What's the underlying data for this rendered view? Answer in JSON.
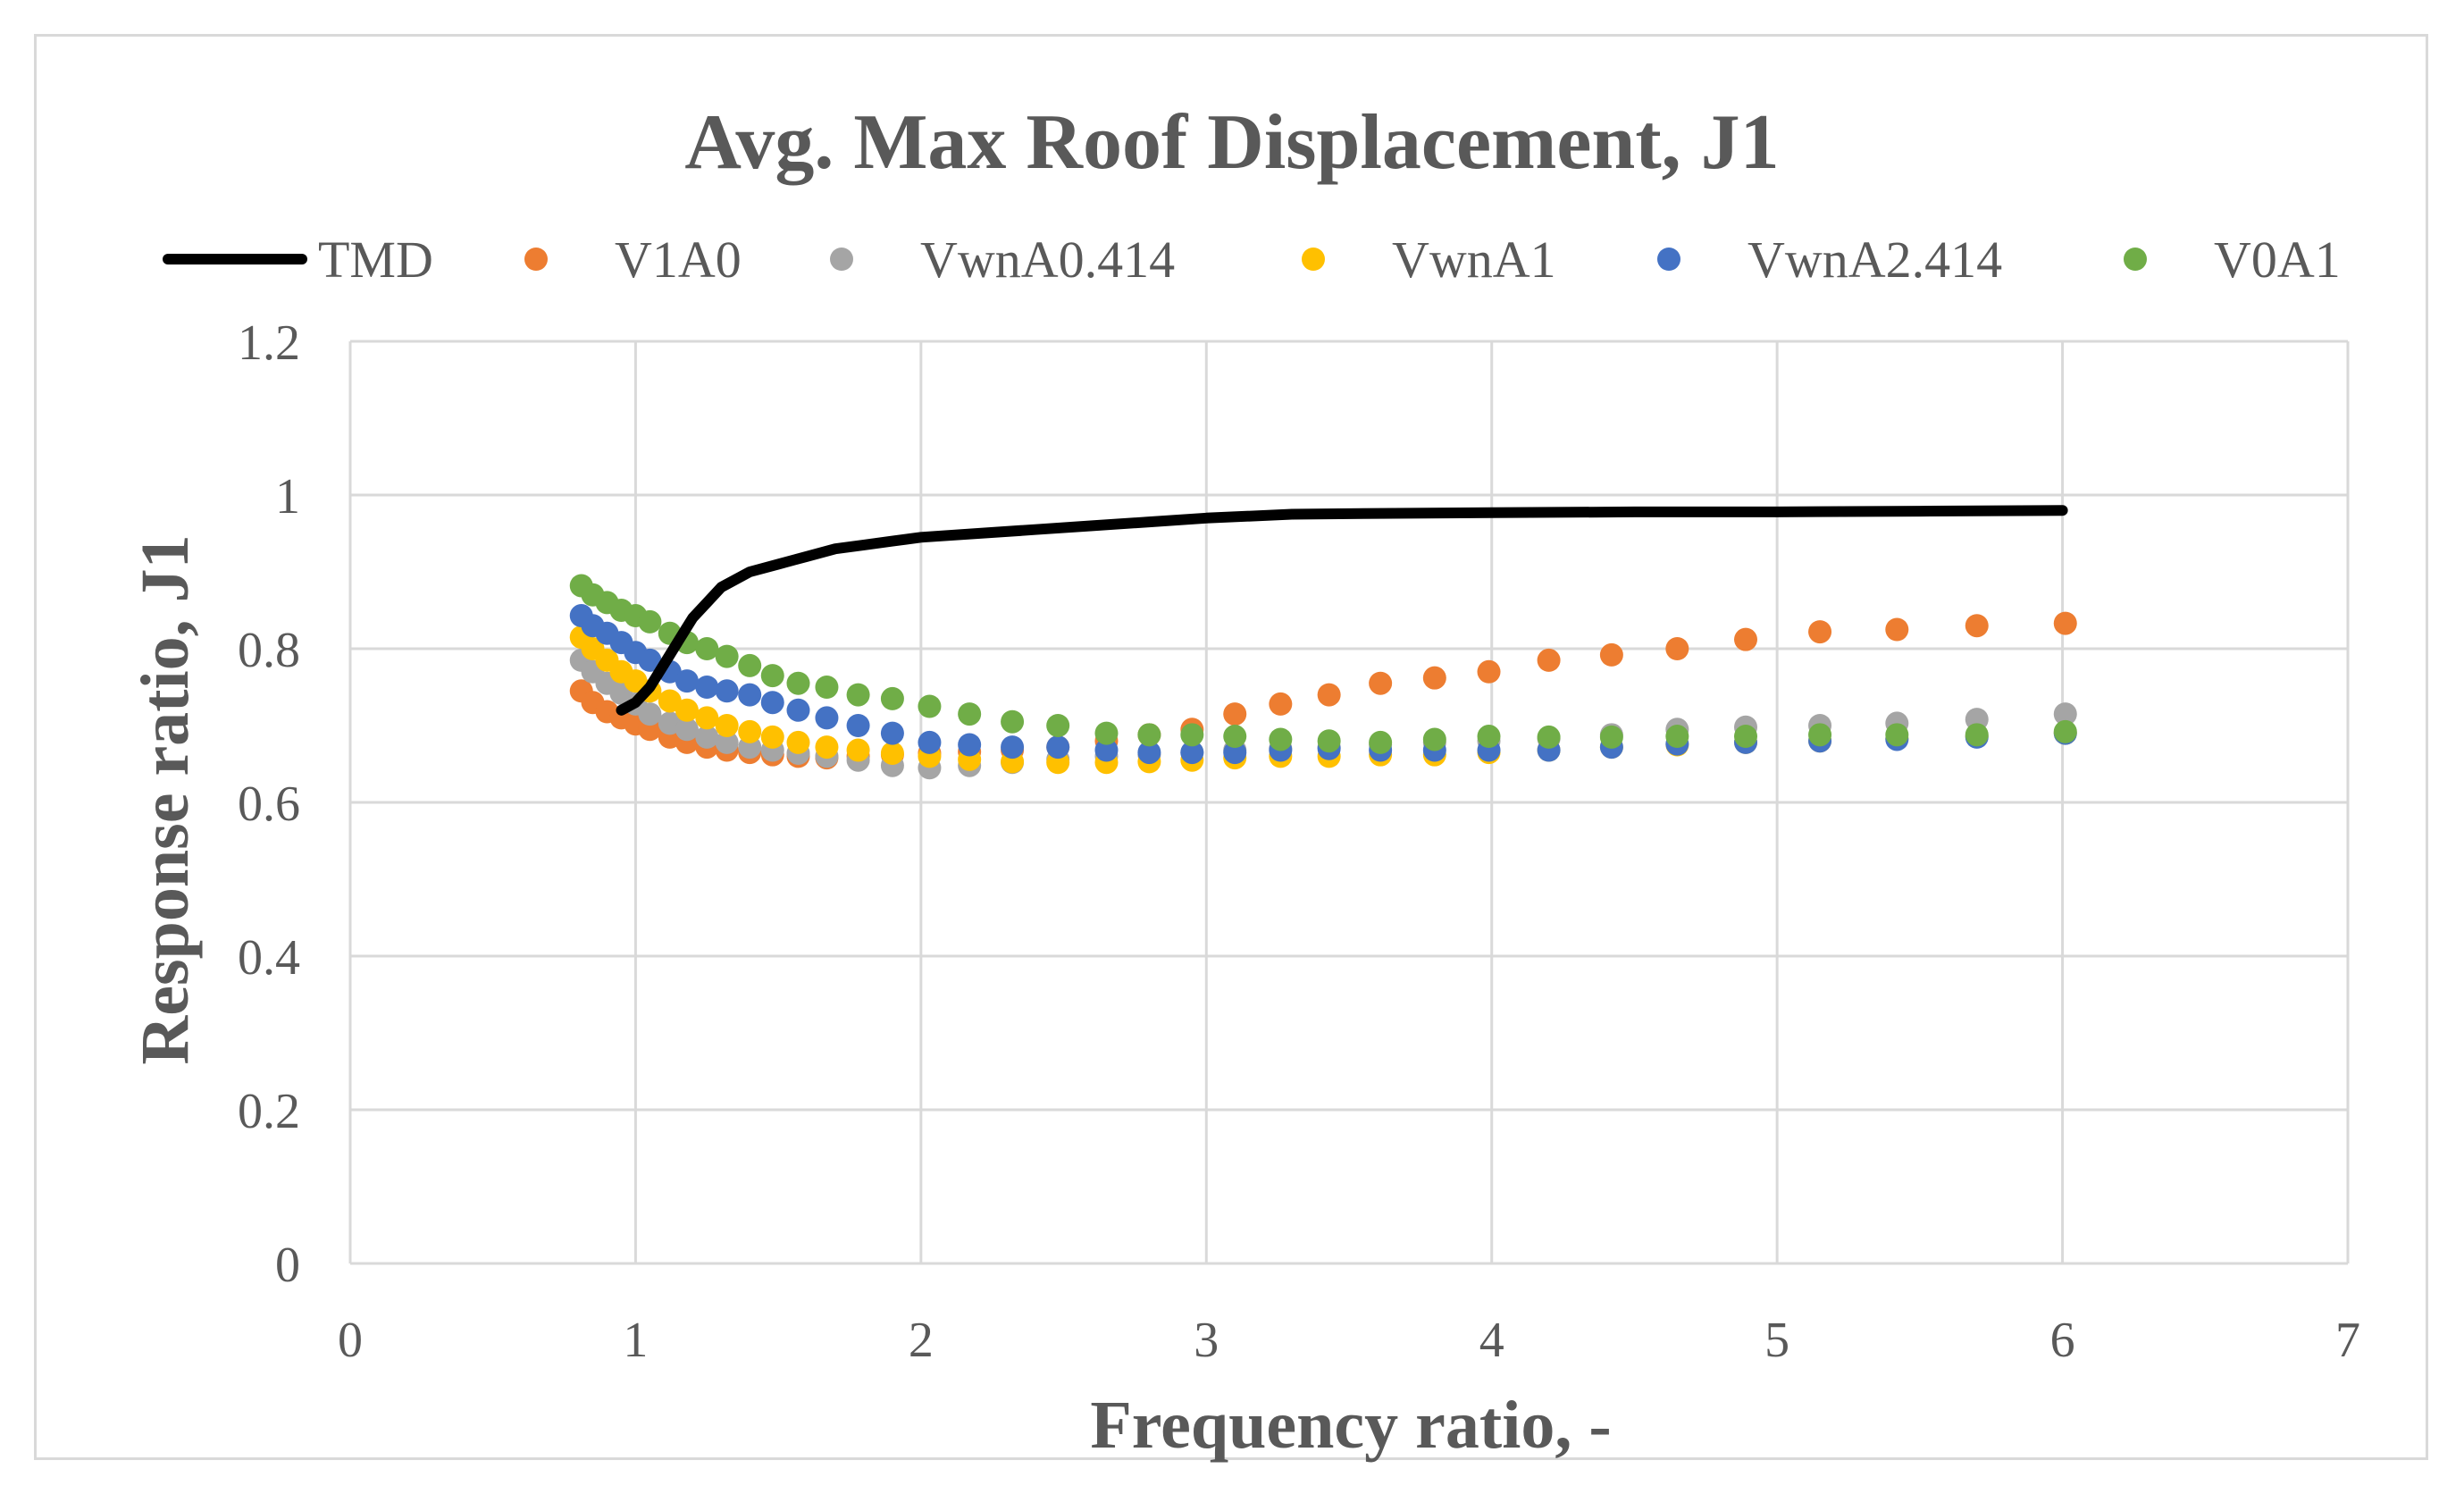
{
  "chart_data": {
    "type": "scatter",
    "title": "Avg. Max Roof Displacement,  J1",
    "xlabel": "Frequency ratio, -",
    "ylabel": "Response ratio, J1",
    "xlim": [
      0,
      7
    ],
    "ylim": [
      0,
      1.2
    ],
    "xticks": [
      0,
      1,
      2,
      3,
      4,
      5,
      6,
      7
    ],
    "yticks": [
      0,
      0.2,
      0.4,
      0.6,
      0.8,
      1,
      1.2
    ],
    "xtick_labels": [
      "0",
      "1",
      "2",
      "3",
      "4",
      "5",
      "6",
      "7"
    ],
    "ytick_labels": [
      "0",
      "0.2",
      "0.4",
      "0.6",
      "0.8",
      "1",
      "1.2"
    ],
    "grid": true,
    "legend_position": "top",
    "series": [
      {
        "name": "TMD",
        "style": "line",
        "color": "#000000",
        "x": [
          0.95,
          1.0,
          1.05,
          1.1,
          1.15,
          1.2,
          1.25,
          1.3,
          1.4,
          1.5,
          1.6,
          1.7,
          1.8,
          1.9,
          2.0,
          2.2,
          2.4,
          2.6,
          2.8,
          3.0,
          3.3,
          3.6,
          4.0,
          4.5,
          5.0,
          5.5,
          6.0
        ],
        "y": [
          0.72,
          0.73,
          0.75,
          0.78,
          0.81,
          0.84,
          0.86,
          0.88,
          0.9,
          0.91,
          0.92,
          0.93,
          0.935,
          0.94,
          0.945,
          0.95,
          0.955,
          0.96,
          0.965,
          0.97,
          0.975,
          0.976,
          0.977,
          0.978,
          0.978,
          0.979,
          0.98
        ]
      },
      {
        "name": "V1A0",
        "style": "marker",
        "color": "#ED7D31",
        "x": [
          0.81,
          0.85,
          0.9,
          0.95,
          1.0,
          1.05,
          1.12,
          1.18,
          1.25,
          1.32,
          1.4,
          1.48,
          1.57,
          1.67,
          1.78,
          1.9,
          2.03,
          2.17,
          2.32,
          2.48,
          2.65,
          2.8,
          2.95,
          3.1,
          3.26,
          3.43,
          3.61,
          3.8,
          3.99,
          4.2,
          4.42,
          4.65,
          4.89,
          5.15,
          5.42,
          5.7,
          6.01
        ],
        "y": [
          0.745,
          0.73,
          0.718,
          0.71,
          0.702,
          0.695,
          0.685,
          0.678,
          0.672,
          0.668,
          0.665,
          0.662,
          0.66,
          0.658,
          0.66,
          0.662,
          0.664,
          0.666,
          0.668,
          0.672,
          0.68,
          0.688,
          0.695,
          0.715,
          0.728,
          0.74,
          0.755,
          0.762,
          0.77,
          0.785,
          0.792,
          0.8,
          0.812,
          0.822,
          0.825,
          0.83,
          0.833
        ]
      },
      {
        "name": "VwnA0.414",
        "style": "marker",
        "color": "#A5A5A5",
        "x": [
          0.81,
          0.85,
          0.9,
          0.95,
          1.0,
          1.05,
          1.12,
          1.18,
          1.25,
          1.32,
          1.4,
          1.48,
          1.57,
          1.67,
          1.78,
          1.9,
          2.03,
          2.17,
          2.32,
          2.48,
          2.65,
          2.8,
          2.95,
          3.1,
          3.26,
          3.43,
          3.61,
          3.8,
          3.99,
          4.2,
          4.42,
          4.65,
          4.89,
          5.15,
          5.42,
          5.7,
          6.01
        ],
        "y": [
          0.785,
          0.77,
          0.755,
          0.742,
          0.728,
          0.715,
          0.703,
          0.695,
          0.685,
          0.678,
          0.672,
          0.668,
          0.664,
          0.66,
          0.655,
          0.648,
          0.645,
          0.648,
          0.652,
          0.656,
          0.66,
          0.662,
          0.665,
          0.668,
          0.67,
          0.672,
          0.675,
          0.678,
          0.68,
          0.683,
          0.688,
          0.695,
          0.698,
          0.7,
          0.703,
          0.708,
          0.715
        ]
      },
      {
        "name": "VwnA1",
        "style": "marker",
        "color": "#FFC000",
        "x": [
          0.81,
          0.85,
          0.9,
          0.95,
          1.0,
          1.05,
          1.12,
          1.18,
          1.25,
          1.32,
          1.4,
          1.48,
          1.57,
          1.67,
          1.78,
          1.9,
          2.03,
          2.17,
          2.32,
          2.48,
          2.65,
          2.8,
          2.95,
          3.1,
          3.26,
          3.43,
          3.61,
          3.8,
          3.99,
          4.2,
          4.42,
          4.65,
          4.89,
          5.15,
          5.42,
          5.7,
          6.01
        ],
        "y": [
          0.815,
          0.8,
          0.785,
          0.77,
          0.758,
          0.745,
          0.732,
          0.72,
          0.71,
          0.7,
          0.692,
          0.685,
          0.678,
          0.672,
          0.668,
          0.664,
          0.66,
          0.656,
          0.653,
          0.652,
          0.652,
          0.653,
          0.655,
          0.658,
          0.66,
          0.66,
          0.662,
          0.662,
          0.665,
          0.668,
          0.672,
          0.675,
          0.678,
          0.68,
          0.683,
          0.686,
          0.69
        ]
      },
      {
        "name": "VwnA2.414",
        "style": "marker",
        "color": "#4472C4",
        "x": [
          0.81,
          0.85,
          0.9,
          0.95,
          1.0,
          1.05,
          1.12,
          1.18,
          1.25,
          1.32,
          1.4,
          1.48,
          1.57,
          1.67,
          1.78,
          1.9,
          2.03,
          2.17,
          2.32,
          2.48,
          2.65,
          2.8,
          2.95,
          3.1,
          3.26,
          3.43,
          3.61,
          3.8,
          3.99,
          4.2,
          4.42,
          4.65,
          4.89,
          5.15,
          5.42,
          5.7,
          6.01
        ],
        "y": [
          0.843,
          0.83,
          0.82,
          0.808,
          0.795,
          0.785,
          0.77,
          0.758,
          0.75,
          0.745,
          0.74,
          0.73,
          0.72,
          0.71,
          0.7,
          0.69,
          0.678,
          0.675,
          0.672,
          0.672,
          0.668,
          0.665,
          0.665,
          0.665,
          0.668,
          0.67,
          0.668,
          0.668,
          0.668,
          0.668,
          0.672,
          0.676,
          0.678,
          0.68,
          0.682,
          0.685,
          0.69
        ]
      },
      {
        "name": "V0A1",
        "style": "marker",
        "color": "#70AD47",
        "x": [
          0.81,
          0.85,
          0.9,
          0.95,
          1.0,
          1.05,
          1.12,
          1.18,
          1.25,
          1.32,
          1.4,
          1.48,
          1.57,
          1.67,
          1.78,
          1.9,
          2.03,
          2.17,
          2.32,
          2.48,
          2.65,
          2.8,
          2.95,
          3.1,
          3.26,
          3.43,
          3.61,
          3.8,
          3.99,
          4.2,
          4.42,
          4.65,
          4.89,
          5.15,
          5.42,
          5.7,
          6.01
        ],
        "y": [
          0.882,
          0.87,
          0.86,
          0.85,
          0.843,
          0.835,
          0.82,
          0.808,
          0.8,
          0.79,
          0.778,
          0.765,
          0.755,
          0.75,
          0.74,
          0.735,
          0.725,
          0.715,
          0.705,
          0.7,
          0.69,
          0.688,
          0.688,
          0.686,
          0.682,
          0.68,
          0.678,
          0.682,
          0.686,
          0.685,
          0.685,
          0.686,
          0.686,
          0.688,
          0.688,
          0.688,
          0.692
        ]
      }
    ]
  }
}
